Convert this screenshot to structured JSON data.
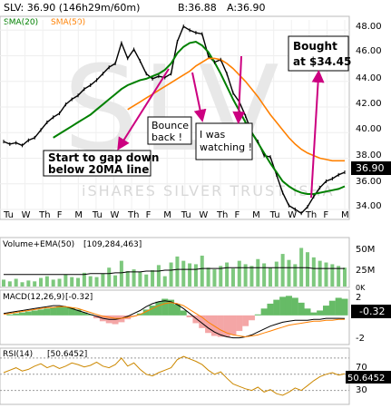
{
  "header": {
    "symbol": "SLV: 36.90 (146h29m/60m)",
    "bid": "B:36.88",
    "ask": "A:36.90",
    "sma20_label": "SMA(20)",
    "sma50_label": "SMA(50)",
    "watermark_big": "SLV",
    "watermark_name": "iSHARES SILVER TRUST iSHA"
  },
  "colors": {
    "price": "#000000",
    "sma20": "#008000",
    "sma50": "#ff8000",
    "annotation": "#cc0080",
    "volume": "#7ec87e",
    "volume_ema": "#000000",
    "macd_fill": "#66bb66",
    "macd_fill_neg": "#f4a6a6",
    "macd_line": "#000000",
    "signal_line": "#ff8000",
    "rsi": "#cc8800",
    "last_badge": "#000000"
  },
  "price_panel": {
    "last_value": "36.90",
    "y_ticks": [
      "48.00",
      "46.00",
      "44.00",
      "42.00",
      "40.00",
      "38.00",
      "36.00",
      "34.00"
    ],
    "x_ticks": [
      "Tu",
      "W",
      "Th",
      "F",
      "M",
      "Tu",
      "W",
      "Th",
      "F",
      "M",
      "Tu",
      "W",
      "Th",
      "F",
      "M",
      "Tu",
      "W",
      "Th",
      "F",
      "M"
    ]
  },
  "annotations": [
    {
      "id": "gap",
      "text_lines": [
        "Start to gap down",
        "below 20MA line"
      ]
    },
    {
      "id": "bounce",
      "text_lines": [
        "Bounce",
        "back !"
      ]
    },
    {
      "id": "watching",
      "text_lines": [
        "I was",
        "watching !"
      ]
    },
    {
      "id": "bought",
      "text_lines": [
        "Bought",
        "at $34.45"
      ]
    }
  ],
  "volume_panel": {
    "label": "Volume+EMA(50)",
    "value": "[109,284,463]",
    "y_ticks": [
      "50M",
      "25M",
      "0K"
    ]
  },
  "macd_panel": {
    "label": "MACD(12,26,9)",
    "value": "[-0.32]",
    "last_value": "-0.32",
    "y_ticks": [
      "2",
      "-2"
    ]
  },
  "rsi_panel": {
    "label": "RSI(14)",
    "value": "[50.6452]",
    "last_value": "50.6452",
    "y_ticks": [
      "70",
      "50",
      "30"
    ]
  },
  "chart_data": [
    {
      "type": "line",
      "title": "SLV: 36.90 (146h29m/60m)",
      "ylim": [
        33.5,
        48.8
      ],
      "series": [
        {
          "name": "SLV",
          "values": [
            39.3,
            39.1,
            39.2,
            39.0,
            39.4,
            39.6,
            40.2,
            40.8,
            41.2,
            41.5,
            42.2,
            42.6,
            42.9,
            43.4,
            43.7,
            44.1,
            44.6,
            45.1,
            45.4,
            47.0,
            45.8,
            46.5,
            45.6,
            44.6,
            44.2,
            44.4,
            44.3,
            44.6,
            47.1,
            48.3,
            48.0,
            47.8,
            47.7,
            46.0,
            45.5,
            45.7,
            44.6,
            43.1,
            42.4,
            41.3,
            40.0,
            39.3,
            38.2,
            38.1,
            36.7,
            35.3,
            34.3,
            34.0,
            33.7,
            34.2,
            35.0,
            35.7,
            36.2,
            36.4,
            36.7,
            36.9
          ]
        },
        {
          "name": "SMA(20)",
          "values": [
            null,
            null,
            null,
            null,
            null,
            null,
            null,
            null,
            39.6,
            39.9,
            40.2,
            40.5,
            40.8,
            41.1,
            41.4,
            41.8,
            42.2,
            42.6,
            43.0,
            43.4,
            43.7,
            43.9,
            44.1,
            44.2,
            44.4,
            44.6,
            44.9,
            45.4,
            46.2,
            46.7,
            47.0,
            47.1,
            46.8,
            46.3,
            45.5,
            44.6,
            43.6,
            42.6,
            41.7,
            40.8,
            40.0,
            39.2,
            38.4,
            37.6,
            36.9,
            36.2,
            35.8,
            35.5,
            35.3,
            35.2,
            35.2,
            35.3,
            35.4,
            35.5,
            35.6,
            35.8
          ]
        },
        {
          "name": "SMA(50)",
          "values": [
            null,
            null,
            null,
            null,
            null,
            null,
            null,
            null,
            null,
            null,
            null,
            null,
            null,
            null,
            null,
            null,
            null,
            null,
            null,
            null,
            41.8,
            42.1,
            42.4,
            42.7,
            43.0,
            43.3,
            43.6,
            43.9,
            44.2,
            44.5,
            44.8,
            45.2,
            45.5,
            45.8,
            45.8,
            45.7,
            45.4,
            45.0,
            44.5,
            44.0,
            43.4,
            42.8,
            42.1,
            41.4,
            40.8,
            40.2,
            39.6,
            39.1,
            38.7,
            38.4,
            38.2,
            38.0,
            37.9,
            37.8,
            37.8,
            37.8
          ]
        }
      ]
    },
    {
      "type": "bar",
      "title": "Volume+EMA(50)",
      "ylim": [
        0,
        55
      ],
      "series": [
        {
          "name": "Volume",
          "values": [
            8,
            6,
            9,
            5,
            7,
            6,
            10,
            12,
            8,
            9,
            14,
            11,
            10,
            16,
            12,
            11,
            15,
            22,
            13,
            30,
            18,
            20,
            17,
            14,
            19,
            25,
            12,
            28,
            35,
            30,
            27,
            26,
            36,
            22,
            20,
            24,
            28,
            21,
            30,
            26,
            24,
            32,
            27,
            22,
            29,
            38,
            31,
            26,
            45,
            40,
            34,
            30,
            28,
            26,
            24,
            22
          ]
        },
        {
          "name": "EMA(50)",
          "values": [
            14,
            14,
            14,
            14,
            14,
            14,
            14,
            14,
            14,
            14,
            14,
            14,
            14,
            14,
            15,
            15,
            15,
            15,
            16,
            16,
            17,
            17,
            17,
            18,
            18,
            18,
            19,
            19,
            20,
            20,
            20,
            20,
            21,
            21,
            21,
            21,
            22,
            22,
            22,
            22,
            22,
            22,
            22,
            22,
            22,
            22,
            22,
            22,
            22,
            22,
            21,
            21,
            21,
            21,
            21,
            21
          ]
        }
      ]
    },
    {
      "type": "area",
      "title": "MACD(12,26,9)",
      "ylim": [
        -2.8,
        2.4
      ],
      "series": [
        {
          "name": "Histogram",
          "values": [
            0,
            0.1,
            0.2,
            0.3,
            0.4,
            0.5,
            0.6,
            0.7,
            0.8,
            0.9,
            0.9,
            0.8,
            0.6,
            0.3,
            0.1,
            -0.3,
            -0.6,
            -0.8,
            -0.9,
            -0.7,
            -0.4,
            -0.1,
            0.2,
            0.6,
            1.0,
            1.4,
            1.7,
            1.6,
            1.1,
            0.5,
            -0.2,
            -0.8,
            -1.3,
            -1.8,
            -2.1,
            -2.2,
            -2.2,
            -2.0,
            -1.6,
            -1.1,
            -0.5,
            0.1,
            0.7,
            1.2,
            1.6,
            1.9,
            2.0,
            1.8,
            1.3,
            0.7,
            0.3,
            0.5,
            1.0,
            1.5,
            1.8,
            1.7
          ]
        },
        {
          "name": "MACD",
          "values": [
            0.2,
            0.3,
            0.4,
            0.5,
            0.6,
            0.7,
            0.8,
            0.9,
            1.0,
            1.0,
            0.9,
            0.7,
            0.5,
            0.3,
            0.1,
            -0.1,
            -0.3,
            -0.4,
            -0.4,
            -0.3,
            -0.1,
            0.2,
            0.5,
            0.9,
            1.2,
            1.4,
            1.5,
            1.4,
            1.1,
            0.7,
            0.2,
            -0.3,
            -0.8,
            -1.3,
            -1.7,
            -2.0,
            -2.2,
            -2.3,
            -2.3,
            -2.2,
            -2.0,
            -1.7,
            -1.4,
            -1.1,
            -0.9,
            -0.7,
            -0.6,
            -0.5,
            -0.5,
            -0.5,
            -0.4,
            -0.4,
            -0.3,
            -0.3,
            -0.3,
            -0.32
          ]
        },
        {
          "name": "Signal",
          "values": [
            0.1,
            0.2,
            0.3,
            0.4,
            0.5,
            0.6,
            0.7,
            0.8,
            0.8,
            0.9,
            0.9,
            0.8,
            0.7,
            0.5,
            0.3,
            0.1,
            -0.1,
            -0.2,
            -0.3,
            -0.3,
            -0.2,
            -0.1,
            0.1,
            0.4,
            0.7,
            1.0,
            1.2,
            1.3,
            1.2,
            1.0,
            0.6,
            0.2,
            -0.2,
            -0.7,
            -1.1,
            -1.5,
            -1.8,
            -2.0,
            -2.1,
            -2.2,
            -2.1,
            -2.0,
            -1.8,
            -1.6,
            -1.4,
            -1.2,
            -1.0,
            -0.9,
            -0.8,
            -0.7,
            -0.6,
            -0.6,
            -0.5,
            -0.5,
            -0.4,
            -0.4
          ]
        }
      ]
    },
    {
      "type": "line",
      "title": "RSI(14)",
      "ylim": [
        15,
        80
      ],
      "series": [
        {
          "name": "RSI(14)",
          "values": [
            52,
            55,
            58,
            54,
            56,
            60,
            63,
            58,
            61,
            57,
            60,
            64,
            62,
            59,
            61,
            65,
            60,
            58,
            62,
            70,
            60,
            64,
            56,
            50,
            48,
            52,
            55,
            58,
            68,
            72,
            69,
            66,
            62,
            55,
            50,
            53,
            45,
            38,
            35,
            32,
            30,
            34,
            28,
            31,
            26,
            24,
            28,
            33,
            30,
            36,
            42,
            47,
            50,
            52,
            49,
            50.6
          ]
        }
      ]
    }
  ]
}
